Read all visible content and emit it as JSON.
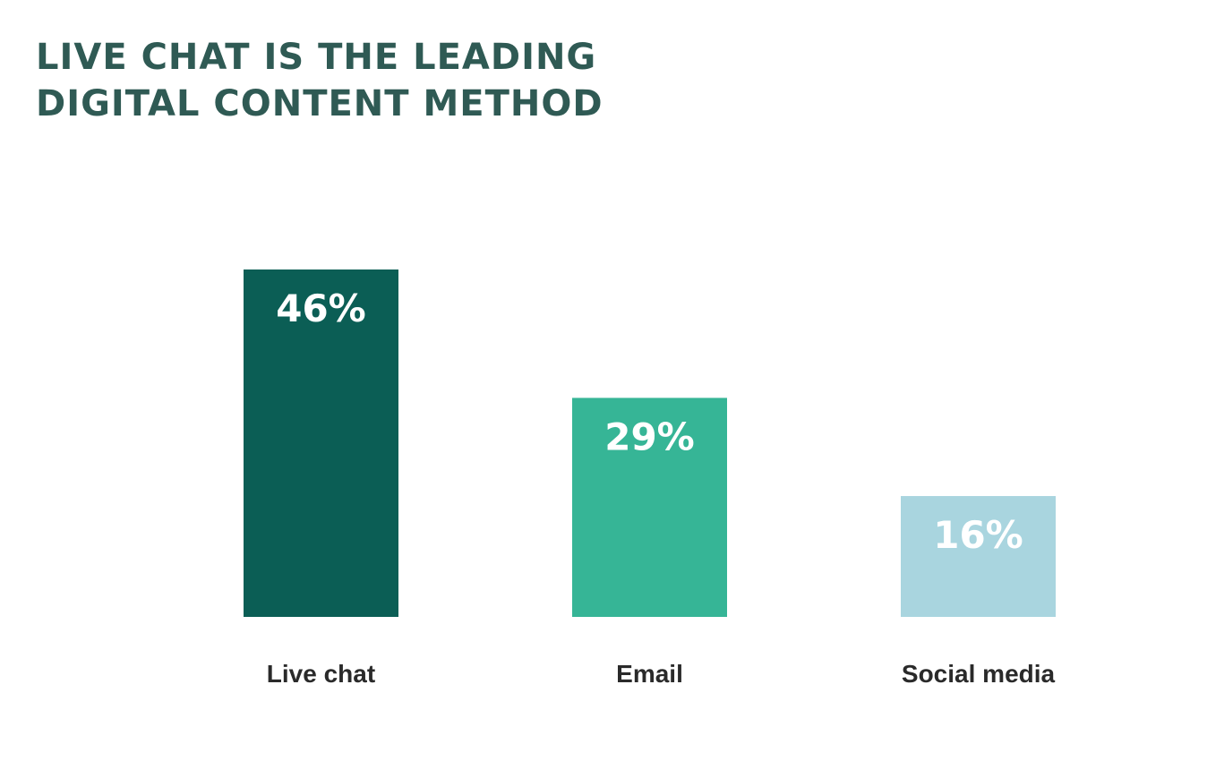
{
  "header": {
    "title_line1": "LIVE CHAT IS THE LEADING",
    "title_line2": "DIGITAL CONTENT METHOD"
  },
  "chart_data": {
    "type": "bar",
    "title": "LIVE CHAT IS THE LEADING DIGITAL CONTENT METHOD",
    "categories": [
      "Live chat",
      "Email",
      "Social media"
    ],
    "values": [
      46,
      29,
      16
    ],
    "value_labels": [
      "46%",
      "29%",
      "16%"
    ],
    "colors": [
      "#0b5e55",
      "#36b596",
      "#a9d5df"
    ],
    "title_color": "#2f5a54",
    "xlabel": "",
    "ylabel": "",
    "ylim": [
      0,
      46
    ],
    "grid": false,
    "legend": "none"
  }
}
